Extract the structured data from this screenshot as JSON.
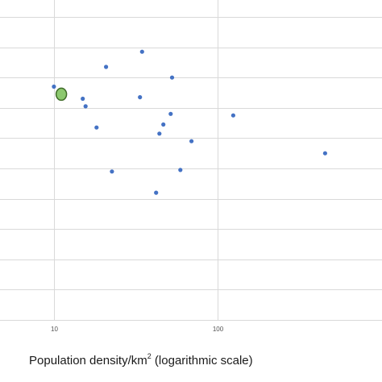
{
  "chart_data": {
    "type": "scatter",
    "xscale": "log",
    "xlim": [
      5.5,
      1000
    ],
    "ylim": [
      0,
      100
    ],
    "grid": true,
    "x_ticks": [
      10,
      100
    ],
    "x_tick_labels": [
      "10",
      "100"
    ],
    "xlabel": {
      "prefix": "Population density/km",
      "superscript": "2",
      "suffix": " (logarithmic scale)"
    },
    "ylabel": "",
    "series": [
      {
        "color": "#4472c4",
        "points": [
          {
            "x": 10.0,
            "y": 77
          },
          {
            "x": 15.0,
            "y": 73
          },
          {
            "x": 15.6,
            "y": 70.5
          },
          {
            "x": 18.2,
            "y": 63.5
          },
          {
            "x": 20.8,
            "y": 83.5
          },
          {
            "x": 22.6,
            "y": 49
          },
          {
            "x": 33.5,
            "y": 73.5
          },
          {
            "x": 34.5,
            "y": 88.5
          },
          {
            "x": 42.0,
            "y": 42
          },
          {
            "x": 44.0,
            "y": 61.5
          },
          {
            "x": 46.5,
            "y": 64.5
          },
          {
            "x": 51.5,
            "y": 68
          },
          {
            "x": 52.5,
            "y": 80
          },
          {
            "x": 59.0,
            "y": 49.5
          },
          {
            "x": 69.0,
            "y": 59
          },
          {
            "x": 124.0,
            "y": 67.5
          },
          {
            "x": 450.0,
            "y": 55
          }
        ]
      },
      {
        "color": "#8cc86e",
        "outline": "#3f6b28",
        "highlight": true,
        "points": [
          {
            "x": 11.1,
            "y": 74.5
          }
        ]
      }
    ]
  }
}
